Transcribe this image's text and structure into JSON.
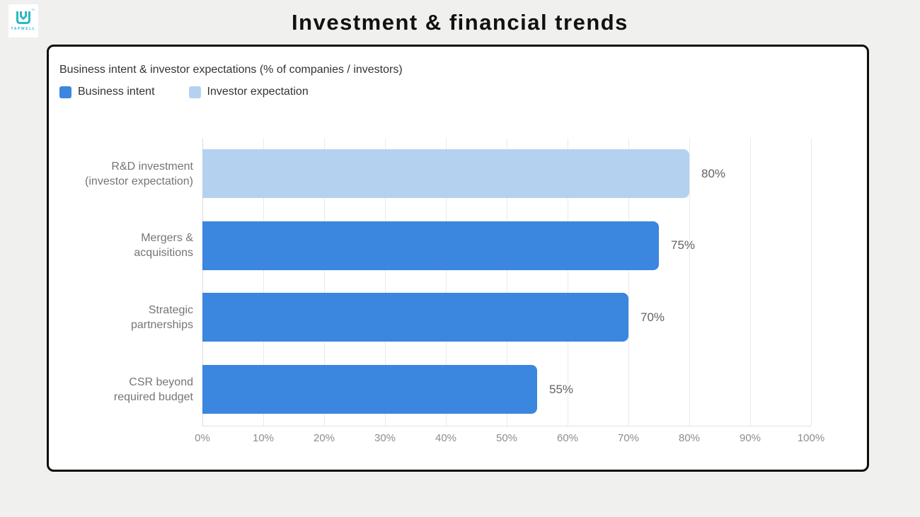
{
  "page": {
    "title": "Investment & financial trends",
    "logo": {
      "brand": "TAPWELL",
      "trademark": "™",
      "color": "#2bb8c4"
    }
  },
  "chart": {
    "subtitle": "Business intent & investor expectations (% of companies / investors)",
    "legend": [
      {
        "label": "Business intent",
        "color": "#3b86de"
      },
      {
        "label": "Investor expectation",
        "color": "#b4d2f0"
      }
    ]
  },
  "chart_data": {
    "type": "bar",
    "orientation": "horizontal",
    "title": "Business intent & investor expectations (% of companies / investors)",
    "categories": [
      "R&D investment\n(investor expectation)",
      "Mergers &\nacquisitions",
      "Strategic\npartnerships",
      "CSR beyond\nrequired budget"
    ],
    "values": [
      80,
      75,
      70,
      55
    ],
    "value_labels": [
      "80%",
      "75%",
      "70%",
      "55%"
    ],
    "bar_series": [
      "Investor expectation",
      "Business intent",
      "Business intent",
      "Business intent"
    ],
    "bar_colors": [
      "#b4d2f0",
      "#3b86de",
      "#3b86de",
      "#3b86de"
    ],
    "xlim": [
      0,
      100
    ],
    "x_ticks": [
      "0%",
      "10%",
      "20%",
      "30%",
      "40%",
      "50%",
      "60%",
      "70%",
      "80%",
      "90%",
      "100%"
    ],
    "x_tick_values": [
      0,
      10,
      20,
      30,
      40,
      50,
      60,
      70,
      80,
      90,
      100
    ],
    "xlabel": "",
    "ylabel": "",
    "grid": true,
    "legend_position": "top-left"
  }
}
